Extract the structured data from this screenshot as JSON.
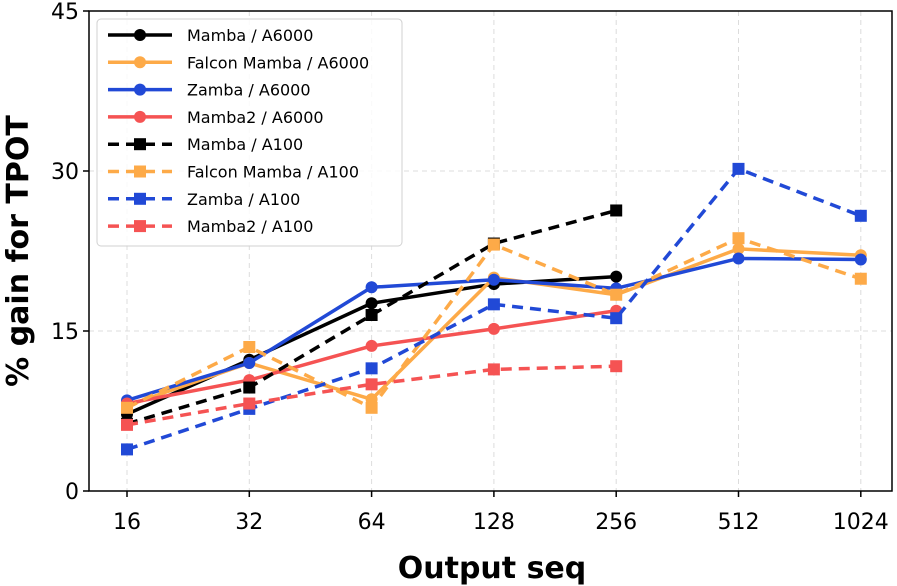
{
  "chart_data": {
    "type": "line",
    "title": "",
    "xlabel": "Output seq",
    "ylabel": "% gain for TPOT",
    "ylim": [
      0,
      45
    ],
    "yticks": [
      "0",
      "15",
      "30",
      "45"
    ],
    "categories": [
      "16",
      "32",
      "64",
      "128",
      "256",
      "512",
      "1024"
    ],
    "grid": true,
    "legend_position": "top-left",
    "series": [
      {
        "name": "Mamba / A6000",
        "color": "#000000",
        "dash": false,
        "marker": "circle",
        "values": [
          7.2,
          12.3,
          17.6,
          19.4,
          20.1,
          null,
          null
        ]
      },
      {
        "name": "Falcon Mamba / A6000",
        "color": "#fdaa48",
        "dash": false,
        "marker": "circle",
        "values": [
          8.0,
          12.0,
          8.6,
          20.0,
          18.4,
          22.7,
          22.1
        ]
      },
      {
        "name": "Zamba / A6000",
        "color": "#2149d6",
        "dash": false,
        "marker": "circle",
        "values": [
          8.5,
          12.0,
          19.1,
          19.8,
          19.0,
          21.8,
          21.7
        ]
      },
      {
        "name": "Mamba2 / A6000",
        "color": "#f55353",
        "dash": false,
        "marker": "circle",
        "values": [
          8.2,
          10.4,
          13.6,
          15.2,
          16.9,
          null,
          null
        ]
      },
      {
        "name": "Mamba / A100",
        "color": "#000000",
        "dash": true,
        "marker": "square",
        "values": [
          6.3,
          9.7,
          16.5,
          23.2,
          26.3,
          null,
          null
        ]
      },
      {
        "name": "Falcon Mamba / A100",
        "color": "#fdaa48",
        "dash": true,
        "marker": "square",
        "values": [
          7.8,
          13.5,
          7.8,
          23.1,
          18.4,
          23.7,
          19.9
        ]
      },
      {
        "name": "Zamba / A100",
        "color": "#2149d6",
        "dash": true,
        "marker": "square",
        "values": [
          3.9,
          7.7,
          11.5,
          17.5,
          16.2,
          30.2,
          25.8
        ]
      },
      {
        "name": "Mamba2 / A100",
        "color": "#f55353",
        "dash": true,
        "marker": "square",
        "values": [
          6.2,
          8.2,
          10.0,
          11.4,
          11.7,
          null,
          null
        ]
      }
    ]
  }
}
